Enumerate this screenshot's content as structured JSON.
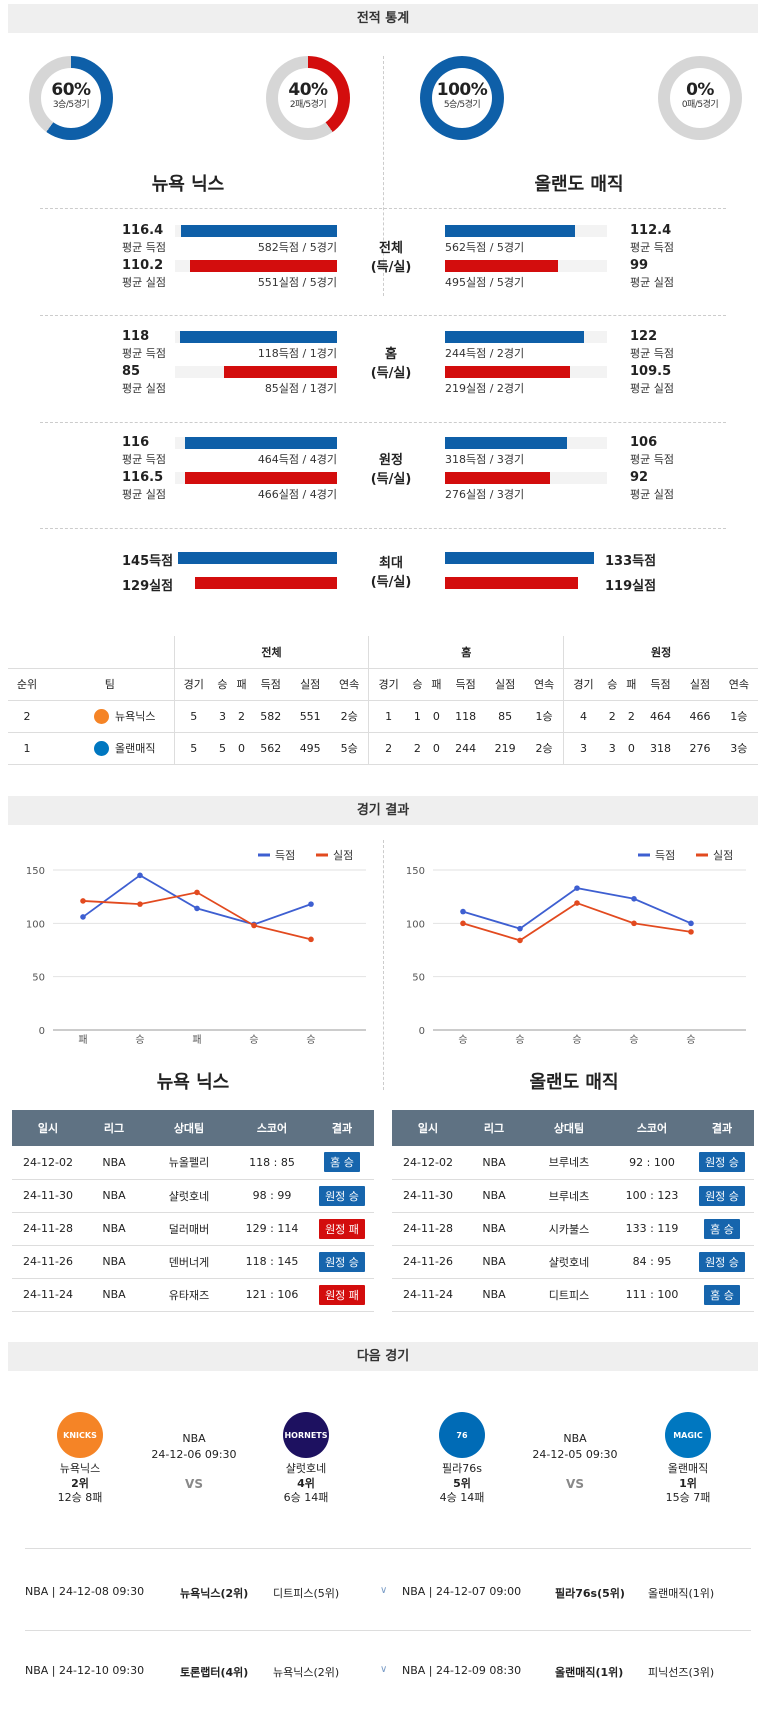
{
  "sections": {
    "record": "전적 통계",
    "results": "경기 결과",
    "next": "다음 경기"
  },
  "donuts": [
    {
      "pct": "60%",
      "sub": "3승/5경기",
      "value": 0.6,
      "color": "#0e5fa8"
    },
    {
      "pct": "40%",
      "sub": "2패/5경기",
      "value": 0.4,
      "color": "#d30d0d"
    },
    {
      "pct": "100%",
      "sub": "5승/5경기",
      "value": 1.0,
      "color": "#0e5fa8"
    },
    {
      "pct": "0%",
      "sub": "0패/5경기",
      "value": 0.0,
      "color": "#d30d0d"
    }
  ],
  "teams": {
    "left": "뉴욕 닉스",
    "right": "올랜도 매직"
  },
  "stat_blocks": [
    {
      "mid": [
        "전체",
        "(득/실)"
      ],
      "left": [
        {
          "value": "116.4",
          "label": "평균 득점",
          "caption": "582득점 / 5경기",
          "fill": 0.96,
          "color": "blue"
        },
        {
          "value": "110.2",
          "label": "평균 실점",
          "caption": "551실점 / 5경기",
          "fill": 0.91,
          "color": "red"
        }
      ],
      "right": [
        {
          "value": "112.4",
          "label": "평균 득점",
          "caption": "562득점 / 5경기",
          "fill": 0.8,
          "color": "blue"
        },
        {
          "value": "99",
          "label": "평균 실점",
          "caption": "495실점 / 5경기",
          "fill": 0.7,
          "color": "red"
        }
      ]
    },
    {
      "mid": [
        "홈",
        "(득/실)"
      ],
      "left": [
        {
          "value": "118",
          "label": "평균 득점",
          "caption": "118득점 / 1경기",
          "fill": 0.97,
          "color": "blue"
        },
        {
          "value": "85",
          "label": "평균 실점",
          "caption": "85실점 / 1경기",
          "fill": 0.7,
          "color": "red"
        }
      ],
      "right": [
        {
          "value": "122",
          "label": "평균 득점",
          "caption": "244득점 / 2경기",
          "fill": 0.86,
          "color": "blue"
        },
        {
          "value": "109.5",
          "label": "평균 실점",
          "caption": "219실점 / 2경기",
          "fill": 0.77,
          "color": "red"
        }
      ]
    },
    {
      "mid": [
        "원정",
        "(득/실)"
      ],
      "left": [
        {
          "value": "116",
          "label": "평균 득점",
          "caption": "464득점 / 4경기",
          "fill": 0.94,
          "color": "blue"
        },
        {
          "value": "116.5",
          "label": "평균 실점",
          "caption": "466실점 / 4경기",
          "fill": 0.94,
          "color": "red"
        }
      ],
      "right": [
        {
          "value": "106",
          "label": "평균 득점",
          "caption": "318득점 / 3경기",
          "fill": 0.75,
          "color": "blue"
        },
        {
          "value": "92",
          "label": "평균 실점",
          "caption": "276실점 / 3경기",
          "fill": 0.65,
          "color": "red"
        }
      ]
    }
  ],
  "max_block": {
    "mid": [
      "최대",
      "(득/실)"
    ],
    "left": [
      {
        "value": "145득점",
        "fill": 1.0,
        "color": "blue"
      },
      {
        "value": "129실점",
        "fill": 0.89,
        "color": "red"
      }
    ],
    "right": [
      {
        "value": "133득점",
        "fill": 0.96,
        "color": "blue"
      },
      {
        "value": "119실점",
        "fill": 0.86,
        "color": "red"
      }
    ]
  },
  "standings": {
    "groups": [
      "전체",
      "홈",
      "원정"
    ],
    "headers": [
      "순위",
      "팀",
      "경기",
      "승",
      "패",
      "득점",
      "실점",
      "연속",
      "경기",
      "승",
      "패",
      "득점",
      "실점",
      "연속",
      "경기",
      "승",
      "패",
      "득점",
      "실점",
      "연속"
    ],
    "rows": [
      {
        "rank": "2",
        "team": "뉴욕닉스",
        "logo_color": "#f58426",
        "cells": [
          "5",
          "3",
          "2",
          "582",
          "551",
          "2승",
          "1",
          "1",
          "0",
          "118",
          "85",
          "1승",
          "4",
          "2",
          "2",
          "464",
          "466",
          "1승"
        ]
      },
      {
        "rank": "1",
        "team": "올랜매직",
        "logo_color": "#0077c0",
        "cells": [
          "5",
          "5",
          "0",
          "562",
          "495",
          "5승",
          "2",
          "2",
          "0",
          "244",
          "219",
          "2승",
          "3",
          "3",
          "0",
          "318",
          "276",
          "3승"
        ]
      }
    ]
  },
  "chart_data": [
    {
      "type": "line",
      "x": [
        "패",
        "승",
        "패",
        "승",
        "승"
      ],
      "series": [
        {
          "name": "득점",
          "color": "#3e5fd1",
          "values": [
            106,
            145,
            114,
            99,
            118
          ]
        },
        {
          "name": "실점",
          "color": "#e24a1f",
          "values": [
            121,
            118,
            129,
            98,
            85
          ]
        }
      ],
      "yticks": [
        "0",
        "50",
        "100",
        "150"
      ],
      "ylim": [
        0,
        150
      ],
      "grid": true,
      "legend": "top-right"
    },
    {
      "type": "line",
      "x": [
        "승",
        "승",
        "승",
        "승",
        "승"
      ],
      "series": [
        {
          "name": "득점",
          "color": "#3e5fd1",
          "values": [
            111,
            95,
            133,
            123,
            100
          ]
        },
        {
          "name": "실점",
          "color": "#e24a1f",
          "values": [
            100,
            84,
            119,
            100,
            92
          ]
        }
      ],
      "yticks": [
        "0",
        "50",
        "100",
        "150"
      ],
      "ylim": [
        0,
        150
      ],
      "grid": true,
      "legend": "top-right"
    }
  ],
  "result_tables": {
    "headers": [
      "일시",
      "리그",
      "상대팀",
      "스코어",
      "결과"
    ],
    "left": [
      {
        "date": "24-12-02",
        "league": "NBA",
        "opp": "뉴올펠리",
        "score": "118 : 85",
        "result": "홈 승",
        "win": true
      },
      {
        "date": "24-11-30",
        "league": "NBA",
        "opp": "샬럿호네",
        "score": "98 : 99",
        "result": "원정 승",
        "win": true
      },
      {
        "date": "24-11-28",
        "league": "NBA",
        "opp": "덜러매버",
        "score": "129 : 114",
        "result": "원정 패",
        "win": false
      },
      {
        "date": "24-11-26",
        "league": "NBA",
        "opp": "덴버너게",
        "score": "118 : 145",
        "result": "원정 승",
        "win": true
      },
      {
        "date": "24-11-24",
        "league": "NBA",
        "opp": "유타재즈",
        "score": "121 : 106",
        "result": "원정 패",
        "win": false
      }
    ],
    "right": [
      {
        "date": "24-12-02",
        "league": "NBA",
        "opp": "브루네츠",
        "score": "92 : 100",
        "result": "원정 승",
        "win": true
      },
      {
        "date": "24-11-30",
        "league": "NBA",
        "opp": "브루네츠",
        "score": "100 : 123",
        "result": "원정 승",
        "win": true
      },
      {
        "date": "24-11-28",
        "league": "NBA",
        "opp": "시카불스",
        "score": "133 : 119",
        "result": "홈 승",
        "win": true
      },
      {
        "date": "24-11-26",
        "league": "NBA",
        "opp": "샬럿호네",
        "score": "84 : 95",
        "result": "원정 승",
        "win": true
      },
      {
        "date": "24-11-24",
        "league": "NBA",
        "opp": "디트피스",
        "score": "111 : 100",
        "result": "홈 승",
        "win": true
      }
    ]
  },
  "next_games": [
    {
      "league": "NBA",
      "datetime": "24-12-06 09:30",
      "vs": "VS",
      "home": {
        "name": "뉴욕닉스",
        "rank": "2위",
        "record": "12승 8패",
        "logo": "KNICKS",
        "logo_color": "#f58426"
      },
      "away": {
        "name": "샬럿호네",
        "rank": "4위",
        "record": "6승 14패",
        "logo": "HORNETS",
        "logo_color": "#1d1160"
      }
    },
    {
      "league": "NBA",
      "datetime": "24-12-05 09:30",
      "vs": "VS",
      "home": {
        "name": "필라76s",
        "rank": "5위",
        "record": "4승 14패",
        "logo": "76",
        "logo_color": "#006bb6"
      },
      "away": {
        "name": "올랜매직",
        "rank": "1위",
        "record": "15승 7패",
        "logo": "MAGIC",
        "logo_color": "#0077c0"
      }
    }
  ],
  "upcoming": [
    {
      "left": {
        "info": "NBA | 24-12-08 09:30",
        "home": "뉴욕닉스(2위)",
        "away": "디트피스(5위)"
      },
      "right": {
        "info": "NBA | 24-12-07 09:00",
        "home": "필라76s(5위)",
        "away": "올랜매직(1위)"
      }
    },
    {
      "left": {
        "info": "NBA | 24-12-10 09:30",
        "home": "토론랩터(4위)",
        "away": "뉴욕닉스(2위)"
      },
      "right": {
        "info": "NBA | 24-12-09 08:30",
        "home": "올랜매직(1위)",
        "away": "피닉선즈(3위)"
      }
    }
  ]
}
